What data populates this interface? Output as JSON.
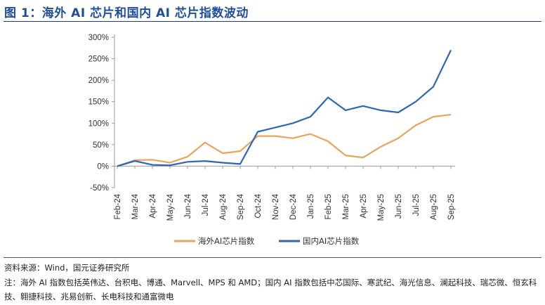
{
  "header": {
    "title": "图 1：海外 AI 芯片和国内 AI 芯片指数波动"
  },
  "footer": {
    "source": "资料来源：Wind，国元证券研究所",
    "note": "注：海外 AI 指数包括英伟达、台积电、博通、Marvell、MPS 和 AMD；国内 AI 指数包括中芯国际、寒武纪、海光信息、澜起科技、瑞芯微、恒玄科技、翱捷科技、兆易创新、长电科技和通富微电"
  },
  "chart_data": {
    "type": "line",
    "title": "",
    "xlabel": "",
    "ylabel": "",
    "ylim": [
      -50,
      300
    ],
    "yticks": [
      "-50%",
      "0%",
      "50%",
      "100%",
      "150%",
      "200%",
      "250%",
      "300%"
    ],
    "ytick_values": [
      -50,
      0,
      50,
      100,
      150,
      200,
      250,
      300
    ],
    "x": [
      "Feb-24",
      "Mar-24",
      "Apr-24",
      "May-24",
      "Jun-24",
      "Jul-24",
      "Aug-24",
      "Sep-24",
      "Oct-24",
      "Nov-24",
      "Dec-24",
      "Jan-25",
      "Feb-25",
      "Mar-25",
      "Apr-25",
      "May-25",
      "Jun-25",
      "Jul-25",
      "Aug-25",
      "Sep-25"
    ],
    "grid": false,
    "legend_position": "bottom",
    "series": [
      {
        "name": "海外AI芯片指数",
        "color": "#e8a55a",
        "values": [
          0,
          14,
          15,
          8,
          22,
          55,
          30,
          35,
          70,
          70,
          65,
          75,
          58,
          25,
          20,
          45,
          65,
          95,
          115,
          120
        ]
      },
      {
        "name": "国内AI芯片指数",
        "color": "#2a67b8",
        "values": [
          0,
          12,
          3,
          2,
          10,
          12,
          8,
          5,
          80,
          90,
          100,
          115,
          160,
          130,
          140,
          130,
          125,
          150,
          185,
          270
        ]
      }
    ]
  }
}
